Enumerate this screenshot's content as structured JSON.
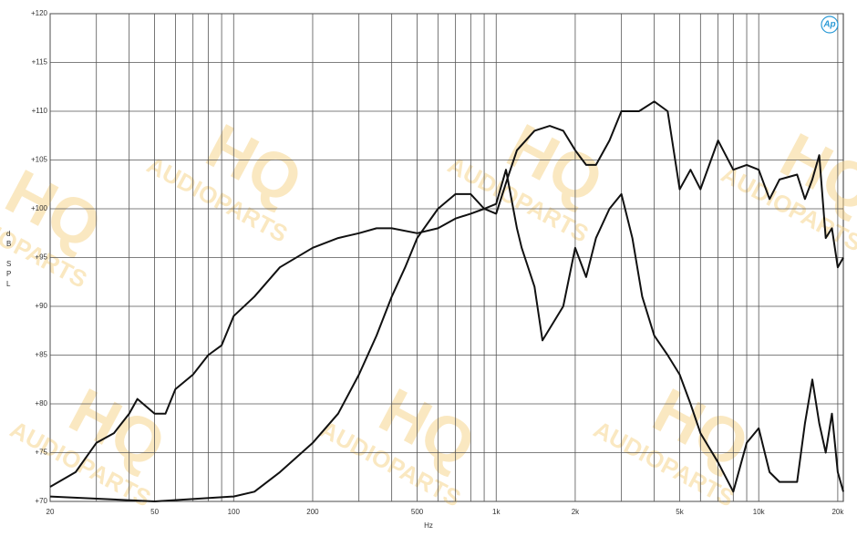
{
  "chart_data": {
    "type": "line",
    "xscale": "log",
    "grid": true,
    "xlabel": "Hz",
    "ylabel": "dB SPL",
    "logo": "Ap",
    "watermark": {
      "title": "HQ",
      "subtitle": "AUDIOPARTS",
      "color": "#f6d690"
    },
    "xlim": [
      20,
      21000
    ],
    "ylim": [
      70,
      120
    ],
    "xticks": [
      20,
      50,
      100,
      200,
      500,
      {
        "value": 1000,
        "label": "1k"
      },
      {
        "value": 2000,
        "label": "2k"
      },
      {
        "value": 5000,
        "label": "5k"
      },
      {
        "value": 10000,
        "label": "10k"
      },
      {
        "value": 20000,
        "label": "20k"
      }
    ],
    "xminor": [
      30,
      40,
      60,
      70,
      80,
      90,
      300,
      400,
      600,
      700,
      800,
      900,
      3000,
      4000,
      6000,
      7000,
      8000,
      9000
    ],
    "yticks": [
      {
        "value": 70,
        "label": "+70"
      },
      {
        "value": 75,
        "label": "+75"
      },
      {
        "value": 80,
        "label": "+80"
      },
      {
        "value": 85,
        "label": "+85"
      },
      {
        "value": 90,
        "label": "+90"
      },
      {
        "value": 95,
        "label": "+95"
      },
      {
        "value": 100,
        "label": "+100"
      },
      {
        "value": 105,
        "label": "+105"
      },
      {
        "value": 110,
        "label": "+110"
      },
      {
        "value": 115,
        "label": "+115"
      },
      {
        "value": 120,
        "label": "+120"
      }
    ],
    "series": [
      {
        "color": "#111111",
        "x": [
          20,
          25,
          30,
          35,
          40,
          43,
          50,
          55,
          60,
          70,
          80,
          90,
          100,
          120,
          150,
          200,
          250,
          300,
          350,
          400,
          500,
          600,
          700,
          800,
          900,
          1000,
          1090,
          1200,
          1250,
          1400,
          1500,
          1800,
          2000,
          2200,
          2400,
          2700,
          3000,
          3300,
          3600,
          4000,
          4500,
          5000,
          5500,
          6000,
          7000,
          8000,
          9000,
          10000,
          11000,
          12000,
          14000,
          15000,
          16000,
          17000,
          18000,
          19000,
          20000,
          21000
        ],
        "values": [
          71.5,
          73,
          76,
          77,
          79,
          80.5,
          79,
          79,
          81.5,
          83,
          85,
          86,
          89,
          91,
          94,
          96,
          97,
          97.5,
          98,
          98,
          97.5,
          98,
          99,
          99.5,
          100,
          100.5,
          104,
          98,
          96,
          92,
          86.5,
          90,
          96,
          93,
          97,
          100,
          101.5,
          97,
          91,
          87,
          85,
          83,
          80,
          77,
          74,
          71,
          76,
          77.5,
          73,
          72,
          72,
          78,
          82.5,
          78,
          75,
          79,
          73,
          71
        ]
      },
      {
        "color": "#111111",
        "x": [
          20,
          50,
          100,
          120,
          150,
          200,
          250,
          300,
          350,
          400,
          450,
          500,
          600,
          700,
          800,
          900,
          1000,
          1100,
          1200,
          1400,
          1600,
          1800,
          2000,
          2200,
          2400,
          2700,
          3000,
          3500,
          4000,
          4500,
          5000,
          5500,
          6000,
          7000,
          8000,
          9000,
          10000,
          11000,
          12000,
          14000,
          15000,
          16000,
          17000,
          18000,
          19000,
          20000,
          21000
        ],
        "values": [
          70.5,
          70,
          70.5,
          71,
          73,
          76,
          79,
          83,
          87,
          91,
          94,
          97,
          100,
          101.5,
          101.5,
          100,
          99.5,
          103,
          106,
          108,
          108.5,
          108,
          106,
          104.5,
          104.5,
          107,
          110,
          110,
          111,
          110,
          102,
          104,
          102,
          107,
          104,
          104.5,
          104,
          101,
          103,
          103.5,
          101,
          103,
          105.5,
          97,
          98,
          94,
          95
        ]
      }
    ]
  }
}
